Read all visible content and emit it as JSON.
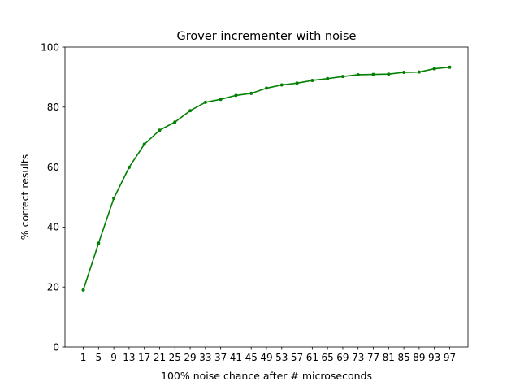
{
  "chart_data": {
    "type": "line",
    "title": "Grover incrementer with noise",
    "xlabel": "100% noise chance after # microseconds",
    "ylabel": "% correct results",
    "x": [
      1,
      5,
      9,
      13,
      17,
      21,
      25,
      29,
      33,
      37,
      41,
      45,
      49,
      53,
      57,
      61,
      65,
      69,
      73,
      77,
      81,
      85,
      89,
      93,
      97
    ],
    "series": [
      {
        "values": [
          19.0,
          34.6,
          49.6,
          59.9,
          67.6,
          72.3,
          75.0,
          78.8,
          81.6,
          82.6,
          83.9,
          84.6,
          86.3,
          87.4,
          88.0,
          88.9,
          89.5,
          90.2,
          90.8,
          90.9,
          91.0,
          91.6,
          91.7,
          92.8,
          93.3
        ],
        "color": "#008000"
      }
    ],
    "xticks": [
      "1",
      "5",
      "9",
      "13",
      "17",
      "21",
      "25",
      "29",
      "33",
      "37",
      "41",
      "45",
      "49",
      "53",
      "57",
      "61",
      "65",
      "69",
      "73",
      "77",
      "81",
      "85",
      "89",
      "93",
      "97"
    ],
    "yticks": [
      0,
      20,
      40,
      60,
      80,
      100
    ],
    "ylim": [
      0,
      100
    ],
    "grid": false,
    "legend": "none"
  }
}
